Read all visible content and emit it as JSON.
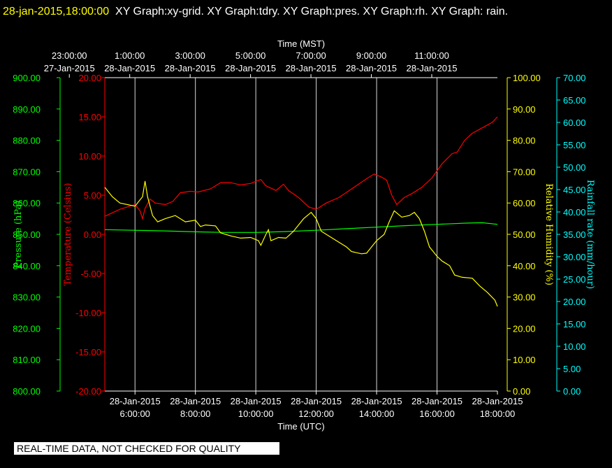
{
  "header": {
    "timestamp": "28-jan-2015,18:00:00",
    "graphs_text": "XY Graph:xy-grid.  XY Graph:tdry.  XY Graph:pres.  XY Graph:rh.  XY Graph: rain."
  },
  "footer_note": "REAL-TIME DATA, NOT CHECKED FOR QUALITY",
  "colors": {
    "temperature": "#ff0000",
    "pressure": "#00ff00",
    "humidity": "#ffff00",
    "rain": "#00ffff",
    "axis": "#ffffff",
    "grid": "#ffffff"
  },
  "chart_data": {
    "type": "line",
    "top_axis": {
      "title": "Time (MST)",
      "ticks": [
        {
          "time": "23:00:00",
          "date": "27-Jan-2015"
        },
        {
          "time": "1:00:00",
          "date": "28-Jan-2015"
        },
        {
          "time": "3:00:00",
          "date": "28-Jan-2015"
        },
        {
          "time": "5:00:00",
          "date": "28-Jan-2015"
        },
        {
          "time": "7:00:00",
          "date": "28-Jan-2015"
        },
        {
          "time": "9:00:00",
          "date": "28-Jan-2015"
        },
        {
          "time": "11:00:00",
          "date": "28-Jan-2015"
        }
      ]
    },
    "bottom_axis": {
      "title": "Time (UTC)",
      "range": [
        "2015-01-28 05:00",
        "2015-01-28 18:00"
      ],
      "ticks": [
        {
          "date": "28-Jan-2015",
          "time": "6:00:00",
          "utc": "2015-01-28 06:00"
        },
        {
          "date": "28-Jan-2015",
          "time": "8:00:00",
          "utc": "2015-01-28 08:00"
        },
        {
          "date": "28-Jan-2015",
          "time": "10:00:00",
          "utc": "2015-01-28 10:00"
        },
        {
          "date": "28-Jan-2015",
          "time": "12:00:00",
          "utc": "2015-01-28 12:00"
        },
        {
          "date": "28-Jan-2015",
          "time": "14:00:00",
          "utc": "2015-01-28 14:00"
        },
        {
          "date": "28-Jan-2015",
          "time": "16:00:00",
          "utc": "2015-01-28 16:00"
        },
        {
          "date": "28-Jan-2015",
          "time": "18:00:00",
          "utc": "2015-01-28 18:00"
        }
      ]
    },
    "y_axes": [
      {
        "id": "pressure",
        "label": "Pressure (hPa)",
        "ylim": [
          800,
          900
        ],
        "ticks": [
          "900.00",
          "890.00",
          "880.00",
          "870.00",
          "860.00",
          "850.00",
          "840.00",
          "830.00",
          "820.00",
          "810.00",
          "800.00"
        ]
      },
      {
        "id": "temperature",
        "label": "Temperature (Celsius)",
        "ylim": [
          -20,
          20
        ],
        "ticks": [
          "20.00",
          "15.00",
          "10.00",
          "5.00",
          "0.00",
          "-5.00",
          "-10.00",
          "-15.00",
          "-20.00"
        ]
      },
      {
        "id": "humidity",
        "label": "Relative Humidity (%)",
        "ylim": [
          0,
          100
        ],
        "ticks": [
          "100.00",
          "90.00",
          "80.00",
          "70.00",
          "60.00",
          "50.00",
          "40.00",
          "30.00",
          "20.00",
          "10.00",
          "0.00"
        ]
      },
      {
        "id": "rain",
        "label": "Rainfall rate (mm/hour)",
        "ylim": [
          0,
          70
        ],
        "ticks": [
          "70.00",
          "65.00",
          "60.00",
          "55.00",
          "50.00",
          "45.00",
          "40.00",
          "35.00",
          "30.00",
          "25.00",
          "20.00",
          "15.00",
          "10.00",
          "5.00",
          "0.00"
        ]
      }
    ],
    "series": [
      {
        "id": "temperature",
        "axis": "temperature",
        "points": [
          [
            "2015-01-28 05:00",
            2.3
          ],
          [
            "2015-01-28 05:30",
            3.2
          ],
          [
            "2015-01-28 06:00",
            3.8
          ],
          [
            "2015-01-28 06:10",
            3.0
          ],
          [
            "2015-01-28 06:15",
            2.0
          ],
          [
            "2015-01-28 06:20",
            3.3
          ],
          [
            "2015-01-28 06:30",
            4.5
          ],
          [
            "2015-01-28 06:40",
            4.0
          ],
          [
            "2015-01-28 07:00",
            3.8
          ],
          [
            "2015-01-28 07:15",
            4.2
          ],
          [
            "2015-01-28 07:30",
            5.3
          ],
          [
            "2015-01-28 07:50",
            5.5
          ],
          [
            "2015-01-28 08:05",
            5.4
          ],
          [
            "2015-01-28 08:30",
            5.8
          ],
          [
            "2015-01-28 08:50",
            6.6
          ],
          [
            "2015-01-28 09:10",
            6.6
          ],
          [
            "2015-01-28 09:30",
            6.3
          ],
          [
            "2015-01-28 09:50",
            6.5
          ],
          [
            "2015-01-28 10:10",
            7.0
          ],
          [
            "2015-01-28 10:20",
            6.2
          ],
          [
            "2015-01-28 10:40",
            5.6
          ],
          [
            "2015-01-28 10:55",
            6.4
          ],
          [
            "2015-01-28 11:05",
            5.6
          ],
          [
            "2015-01-28 11:25",
            4.7
          ],
          [
            "2015-01-28 11:45",
            3.5
          ],
          [
            "2015-01-28 12:00",
            3.2
          ],
          [
            "2015-01-28 12:20",
            4.0
          ],
          [
            "2015-01-28 12:45",
            4.7
          ],
          [
            "2015-01-28 13:15",
            6.0
          ],
          [
            "2015-01-28 13:40",
            7.1
          ],
          [
            "2015-01-28 13:55",
            7.7
          ],
          [
            "2015-01-28 14:10",
            7.3
          ],
          [
            "2015-01-28 14:20",
            6.9
          ],
          [
            "2015-01-28 14:30",
            5.0
          ],
          [
            "2015-01-28 14:40",
            3.8
          ],
          [
            "2015-01-28 14:55",
            4.7
          ],
          [
            "2015-01-28 15:10",
            5.2
          ],
          [
            "2015-01-28 15:30",
            6.0
          ],
          [
            "2015-01-28 15:50",
            7.2
          ],
          [
            "2015-01-28 16:10",
            9.0
          ],
          [
            "2015-01-28 16:30",
            10.3
          ],
          [
            "2015-01-28 16:40",
            10.5
          ],
          [
            "2015-01-28 16:55",
            12.0
          ],
          [
            "2015-01-28 17:10",
            12.9
          ],
          [
            "2015-01-28 17:30",
            13.6
          ],
          [
            "2015-01-28 17:50",
            14.3
          ],
          [
            "2015-01-28 18:00",
            15.0
          ]
        ]
      },
      {
        "id": "pressure",
        "axis": "pressure",
        "points": [
          [
            "2015-01-28 05:00",
            851.5
          ],
          [
            "2015-01-28 07:00",
            851.1
          ],
          [
            "2015-01-28 08:00",
            850.8
          ],
          [
            "2015-01-28 09:00",
            850.6
          ],
          [
            "2015-01-28 10:00",
            850.6
          ],
          [
            "2015-01-28 11:00",
            850.9
          ],
          [
            "2015-01-28 12:00",
            851.3
          ],
          [
            "2015-01-28 13:00",
            851.8
          ],
          [
            "2015-01-28 14:00",
            852.3
          ],
          [
            "2015-01-28 15:00",
            852.8
          ],
          [
            "2015-01-28 16:00",
            853.2
          ],
          [
            "2015-01-28 16:30",
            853.4
          ],
          [
            "2015-01-28 17:00",
            853.6
          ],
          [
            "2015-01-28 17:30",
            853.7
          ],
          [
            "2015-01-28 18:00",
            853.2
          ]
        ]
      },
      {
        "id": "humidity",
        "axis": "humidity",
        "points": [
          [
            "2015-01-28 05:00",
            65.0
          ],
          [
            "2015-01-28 05:15",
            62.0
          ],
          [
            "2015-01-28 05:30",
            60.0
          ],
          [
            "2015-01-28 06:00",
            59.0
          ],
          [
            "2015-01-28 06:15",
            62.0
          ],
          [
            "2015-01-28 06:20",
            67.0
          ],
          [
            "2015-01-28 06:25",
            62.0
          ],
          [
            "2015-01-28 06:35",
            56.0
          ],
          [
            "2015-01-28 06:45",
            54.0
          ],
          [
            "2015-01-28 07:00",
            55.0
          ],
          [
            "2015-01-28 07:20",
            56.0
          ],
          [
            "2015-01-28 07:40",
            54.0
          ],
          [
            "2015-01-28 08:00",
            54.5
          ],
          [
            "2015-01-28 08:10",
            52.5
          ],
          [
            "2015-01-28 08:20",
            53.0
          ],
          [
            "2015-01-28 08:40",
            52.7
          ],
          [
            "2015-01-28 08:50",
            50.5
          ],
          [
            "2015-01-28 09:10",
            49.5
          ],
          [
            "2015-01-28 09:30",
            48.8
          ],
          [
            "2015-01-28 09:50",
            49.0
          ],
          [
            "2015-01-28 10:05",
            48.0
          ],
          [
            "2015-01-28 10:10",
            46.5
          ],
          [
            "2015-01-28 10:20",
            50.0
          ],
          [
            "2015-01-28 10:25",
            51.5
          ],
          [
            "2015-01-28 10:30",
            48.0
          ],
          [
            "2015-01-28 10:45",
            49.0
          ],
          [
            "2015-01-28 11:00",
            48.8
          ],
          [
            "2015-01-28 11:15",
            51.0
          ],
          [
            "2015-01-28 11:35",
            55.0
          ],
          [
            "2015-01-28 11:50",
            57.0
          ],
          [
            "2015-01-28 12:00",
            55.0
          ],
          [
            "2015-01-28 12:10",
            51.0
          ],
          [
            "2015-01-28 12:25",
            49.5
          ],
          [
            "2015-01-28 12:40",
            48.0
          ],
          [
            "2015-01-28 13:00",
            46.0
          ],
          [
            "2015-01-28 13:10",
            44.5
          ],
          [
            "2015-01-28 13:30",
            43.8
          ],
          [
            "2015-01-28 13:40",
            44.0
          ],
          [
            "2015-01-28 13:50",
            46.0
          ],
          [
            "2015-01-28 14:00",
            48.0
          ],
          [
            "2015-01-28 14:15",
            50.0
          ],
          [
            "2015-01-28 14:25",
            54.0
          ],
          [
            "2015-01-28 14:35",
            57.5
          ],
          [
            "2015-01-28 14:50",
            55.5
          ],
          [
            "2015-01-28 15:05",
            56.0
          ],
          [
            "2015-01-28 15:15",
            57.0
          ],
          [
            "2015-01-28 15:25",
            55.0
          ],
          [
            "2015-01-28 15:35",
            51.0
          ],
          [
            "2015-01-28 15:45",
            46.0
          ],
          [
            "2015-01-28 16:00",
            43.0
          ],
          [
            "2015-01-28 16:10",
            41.5
          ],
          [
            "2015-01-28 16:25",
            40.0
          ],
          [
            "2015-01-28 16:35",
            37.0
          ],
          [
            "2015-01-28 16:50",
            36.3
          ],
          [
            "2015-01-28 17:10",
            36.0
          ],
          [
            "2015-01-28 17:25",
            33.5
          ],
          [
            "2015-01-28 17:40",
            31.5
          ],
          [
            "2015-01-28 17:55",
            29.0
          ],
          [
            "2015-01-28 18:00",
            27.0
          ]
        ]
      },
      {
        "id": "rain",
        "axis": "rain",
        "points": []
      }
    ]
  }
}
